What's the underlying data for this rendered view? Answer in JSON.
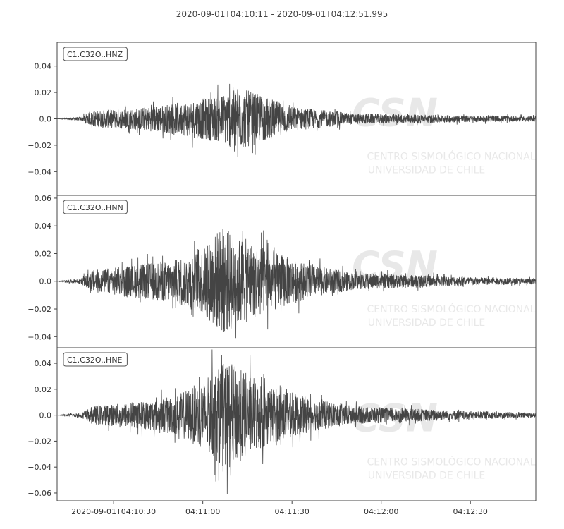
{
  "title": "2020-09-01T04:10:11  -  2020-09-01T04:12:51.995",
  "colors": {
    "trace": "#444444",
    "axis": "#444444",
    "watermark": "#e8e8e8"
  },
  "watermark": {
    "logo": "CSN",
    "line1": "CENTRO SISMOLÓGICO NACIONAL",
    "line2": "UNIVERSIDAD DE CHILE"
  },
  "chart_data": [
    {
      "type": "line",
      "series_label": "C1.C32O..HNZ",
      "ylim": [
        -0.058,
        0.058
      ],
      "yticks": [
        0.04,
        0.02,
        0.0,
        -0.02,
        -0.04
      ],
      "ytick_labels": [
        "0.04",
        "0.02",
        "0.0",
        "−0.02",
        "−0.04"
      ],
      "peak_amplitude": 0.026,
      "min_amplitude": -0.026,
      "envelope_s": [
        0,
        8,
        12,
        30,
        40,
        55,
        60,
        72,
        80,
        100,
        140,
        161
      ],
      "envelope_amp": [
        0.0,
        0.0015,
        0.006,
        0.009,
        0.012,
        0.018,
        0.025,
        0.015,
        0.009,
        0.004,
        0.0025,
        0.002
      ]
    },
    {
      "type": "line",
      "series_label": "C1.C32O..HNN",
      "ylim": [
        -0.048,
        0.062
      ],
      "yticks": [
        0.06,
        0.04,
        0.02,
        0.0,
        -0.02,
        -0.04
      ],
      "ytick_labels": [
        "0.06",
        "0.04",
        "0.02",
        "0.0",
        "−0.02",
        "−0.04"
      ],
      "peak_amplitude": 0.051,
      "min_amplitude": -0.041,
      "envelope_s": [
        0,
        8,
        12,
        30,
        40,
        50,
        55,
        60,
        72,
        85,
        100,
        140,
        161
      ],
      "envelope_amp": [
        0.0,
        0.002,
        0.008,
        0.013,
        0.016,
        0.025,
        0.04,
        0.034,
        0.022,
        0.012,
        0.006,
        0.003,
        0.002
      ]
    },
    {
      "type": "line",
      "series_label": "C1.C32O..HNE",
      "ylim": [
        -0.066,
        0.052
      ],
      "yticks": [
        0.04,
        0.02,
        0.0,
        -0.02,
        -0.04,
        -0.06
      ],
      "ytick_labels": [
        "0.04",
        "0.02",
        "0.0",
        "−0.02",
        "−0.04",
        "−0.06"
      ],
      "peak_amplitude": 0.046,
      "min_amplitude": -0.061,
      "envelope_s": [
        0,
        8,
        12,
        30,
        40,
        50,
        57,
        62,
        72,
        85,
        100,
        140,
        161
      ],
      "envelope_amp": [
        0.0,
        0.002,
        0.007,
        0.011,
        0.015,
        0.028,
        0.042,
        0.035,
        0.022,
        0.013,
        0.007,
        0.003,
        0.002
      ]
    }
  ],
  "x_axis": {
    "range_s": [
      0,
      160.995
    ],
    "tick_s": [
      19,
      49,
      79,
      109,
      139
    ],
    "tick_labels": [
      "2020-09-01T04:10:30",
      "04:11:00",
      "04:11:30",
      "04:12:00",
      "04:12:30"
    ]
  }
}
